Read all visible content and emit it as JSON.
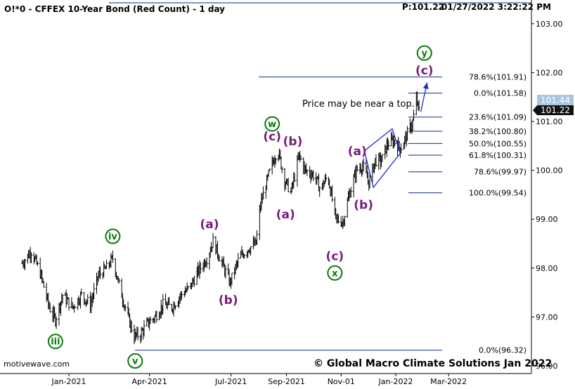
{
  "header": {
    "title": "O!*0 - CFFEX 10-Year Bond (Red Count) - 1 day",
    "price_label": "P:101.22",
    "datetime": "01/27/2022 3:22:22 PM"
  },
  "watermark": "motivewave.com",
  "copyright": "© Global Macro Climate Solutions Jan 2022",
  "annotation": "Price may be near a top.",
  "last_price_tag": "101.22",
  "prev_price_tag": "101.44",
  "colors": {
    "bars": "#000000",
    "fib_lines": "#0b2a8a",
    "channel": "#1a2ad0",
    "wave_purple": "#7a1a7a",
    "wave_green": "#0a7a0a",
    "price_tag_bg": "#111111",
    "prev_tag_bg": "#a8c6e0"
  },
  "chart_data": {
    "type": "ohlc",
    "ylim": [
      96.0,
      103.5
    ],
    "y_ticks": [
      96.0,
      97.0,
      98.0,
      99.0,
      100.0,
      101.0,
      102.0,
      103.0
    ],
    "y_tick_labels": [
      "96.00",
      "97.00",
      "98.00",
      "99.00",
      "100.00",
      "101.00",
      "102.00",
      "103.00"
    ],
    "x_tick_labels": [
      "Jan-2021",
      "Apr-2021",
      "Jul-2021",
      "Sep-2021",
      "Nov-01",
      "Jan-2022",
      "Mar-2022"
    ],
    "x_tick_dates": [
      "2021-01-01",
      "2021-04-01",
      "2021-07-01",
      "2021-09-01",
      "2021-11-01",
      "2022-01-01",
      "2022-03-01"
    ],
    "series_anchors": [
      [
        "2020-11-10",
        98.1
      ],
      [
        "2020-11-20",
        98.35
      ],
      [
        "2020-11-30",
        97.9
      ],
      [
        "2020-12-10",
        97.2
      ],
      [
        "2020-12-17",
        96.95
      ],
      [
        "2020-12-25",
        97.45
      ],
      [
        "2021-01-05",
        97.2
      ],
      [
        "2021-01-15",
        97.45
      ],
      [
        "2021-01-25",
        97.25
      ],
      [
        "2021-02-03",
        97.85
      ],
      [
        "2021-02-12",
        98.0
      ],
      [
        "2021-02-19",
        98.2
      ],
      [
        "2021-02-26",
        97.65
      ],
      [
        "2021-03-08",
        97.0
      ],
      [
        "2021-03-15",
        96.6
      ],
      [
        "2021-03-22",
        96.65
      ],
      [
        "2021-03-29",
        96.85
      ],
      [
        "2021-04-07",
        97.0
      ],
      [
        "2021-04-16",
        97.25
      ],
      [
        "2021-04-26",
        97.2
      ],
      [
        "2021-05-06",
        97.45
      ],
      [
        "2021-05-16",
        97.6
      ],
      [
        "2021-05-26",
        97.95
      ],
      [
        "2021-06-04",
        98.2
      ],
      [
        "2021-06-11",
        98.55
      ],
      [
        "2021-06-21",
        98.1
      ],
      [
        "2021-06-30",
        97.7
      ],
      [
        "2021-07-10",
        98.2
      ],
      [
        "2021-07-20",
        98.4
      ],
      [
        "2021-07-29",
        98.5
      ],
      [
        "2021-08-03",
        99.3
      ],
      [
        "2021-08-12",
        99.9
      ],
      [
        "2021-08-22",
        100.45
      ],
      [
        "2021-08-30",
        99.8
      ],
      [
        "2021-09-06",
        99.55
      ],
      [
        "2021-09-15",
        100.3
      ],
      [
        "2021-09-22",
        100.0
      ],
      [
        "2021-10-02",
        99.9
      ],
      [
        "2021-10-09",
        99.6
      ],
      [
        "2021-10-17",
        99.9
      ],
      [
        "2021-10-26",
        99.0
      ],
      [
        "2021-11-03",
        98.95
      ],
      [
        "2021-11-10",
        99.5
      ],
      [
        "2021-11-18",
        100.0
      ],
      [
        "2021-11-25",
        100.1
      ],
      [
        "2021-12-02",
        99.75
      ],
      [
        "2021-12-09",
        100.2
      ],
      [
        "2021-12-16",
        100.2
      ],
      [
        "2021-12-23",
        100.55
      ],
      [
        "2021-12-30",
        100.6
      ],
      [
        "2022-01-06",
        100.45
      ],
      [
        "2022-01-13",
        100.7
      ],
      [
        "2022-01-20",
        101.0
      ],
      [
        "2022-01-24",
        101.45
      ],
      [
        "2022-01-27",
        101.22
      ]
    ],
    "fib_levels": [
      {
        "label": "78.6%(101.91)",
        "value": 101.91,
        "from": "2021-08-01",
        "to": "2022-02-22"
      },
      {
        "label": "0.0%(101.58)",
        "value": 101.58,
        "from": "2022-01-15",
        "to": "2022-02-22"
      },
      {
        "label": "23.6%(101.09)",
        "value": 101.09,
        "from": "2022-01-15",
        "to": "2022-02-22"
      },
      {
        "label": "38.2%(100.80)",
        "value": 100.8,
        "from": "2022-01-15",
        "to": "2022-02-22"
      },
      {
        "label": "50.0%(100.55)",
        "value": 100.55,
        "from": "2022-01-15",
        "to": "2022-02-22"
      },
      {
        "label": "61.8%(100.31)",
        "value": 100.31,
        "from": "2022-01-15",
        "to": "2022-02-22"
      },
      {
        "label": "78.6%(99.97)",
        "value": 99.97,
        "from": "2022-01-15",
        "to": "2022-02-22"
      },
      {
        "label": "100.0%(99.54)",
        "value": 99.54,
        "from": "2022-01-15",
        "to": "2022-02-22"
      },
      {
        "label": "0.0%(96.32)",
        "value": 96.32,
        "from": "2021-03-16",
        "to": "2022-02-22"
      }
    ],
    "wave_labels": [
      {
        "text": "iii",
        "style": "green",
        "date": "2020-12-17",
        "value": 96.5
      },
      {
        "text": "iv",
        "style": "green",
        "date": "2021-02-19",
        "value": 98.65
      },
      {
        "text": "v",
        "style": "green",
        "date": "2021-03-16",
        "value": 96.1
      },
      {
        "text": "(a)",
        "style": "purple",
        "date": "2021-06-07",
        "value": 98.9
      },
      {
        "text": "(b)",
        "style": "purple",
        "date": "2021-06-28",
        "value": 97.35
      },
      {
        "text": "w",
        "style": "green",
        "date": "2021-08-16",
        "value": 100.95
      },
      {
        "text": "(c)",
        "style": "purple",
        "date": "2021-08-16",
        "value": 100.7
      },
      {
        "text": "(a)",
        "style": "purple",
        "date": "2021-08-31",
        "value": 99.1
      },
      {
        "text": "(b)",
        "style": "purple",
        "date": "2021-09-08",
        "value": 100.6
      },
      {
        "text": "(c)",
        "style": "purple",
        "date": "2021-10-25",
        "value": 98.25
      },
      {
        "text": "x",
        "style": "green",
        "date": "2021-10-25",
        "value": 97.9
      },
      {
        "text": "(a)",
        "style": "purple",
        "date": "2021-11-19",
        "value": 100.4
      },
      {
        "text": "(b)",
        "style": "purple",
        "date": "2021-11-26",
        "value": 99.3
      },
      {
        "text": "(c)",
        "style": "purple",
        "date": "2022-02-02",
        "value": 102.05
      },
      {
        "text": "y",
        "style": "green",
        "date": "2022-02-02",
        "value": 102.4
      }
    ],
    "channel": [
      {
        "date": "2021-11-27",
        "value": 100.4
      },
      {
        "date": "2021-12-28",
        "value": 100.85
      },
      {
        "date": "2022-01-06",
        "value": 100.35
      },
      {
        "date": "2021-12-07",
        "value": 99.65
      }
    ],
    "arrow": {
      "from": [
        "2022-01-29",
        101.2
      ],
      "to": [
        "2022-02-05",
        101.8
      ]
    }
  }
}
